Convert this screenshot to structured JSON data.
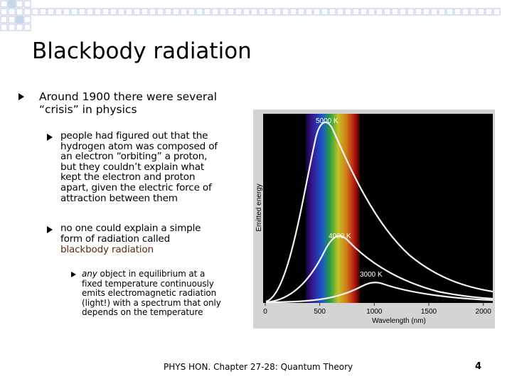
{
  "title": "Blackbody radiation",
  "bullets": [
    {
      "lines": [
        "Around 1900 there were several",
        "“crisis” in physics"
      ],
      "sub": [
        {
          "lines": [
            "people had figured out that the",
            "hydrogen atom was composed of",
            "an electron “orbiting” a proton,",
            "but they couldn’t explain what",
            "kept the electron and proton",
            "apart, given the electric force of",
            "attraction between them"
          ]
        },
        {
          "lines": [
            "no one could explain a simple",
            "form of radiation called"
          ],
          "highlight": "blackbody radiation",
          "sub": [
            {
              "emphasis": "any",
              "lines": [
                "object in equilibrium at a",
                "fixed temperature continuously",
                "emits electromagnetic radiation",
                "(light!) with a spectrum that only",
                "depends on the temperature"
              ]
            }
          ]
        }
      ]
    }
  ],
  "figure": {
    "ylabel": "Emitted energy",
    "xlabel": "Wavelength (nm)",
    "curves": [
      "5000 K",
      "4000 K",
      "3000 K"
    ],
    "xlim": [
      0,
      2100
    ],
    "xticks": [
      0,
      500,
      1000,
      1500,
      2000
    ]
  },
  "footer": {
    "text": "PHYS HON. Chapter 27-28: Quantum Theory",
    "page": 4
  }
}
